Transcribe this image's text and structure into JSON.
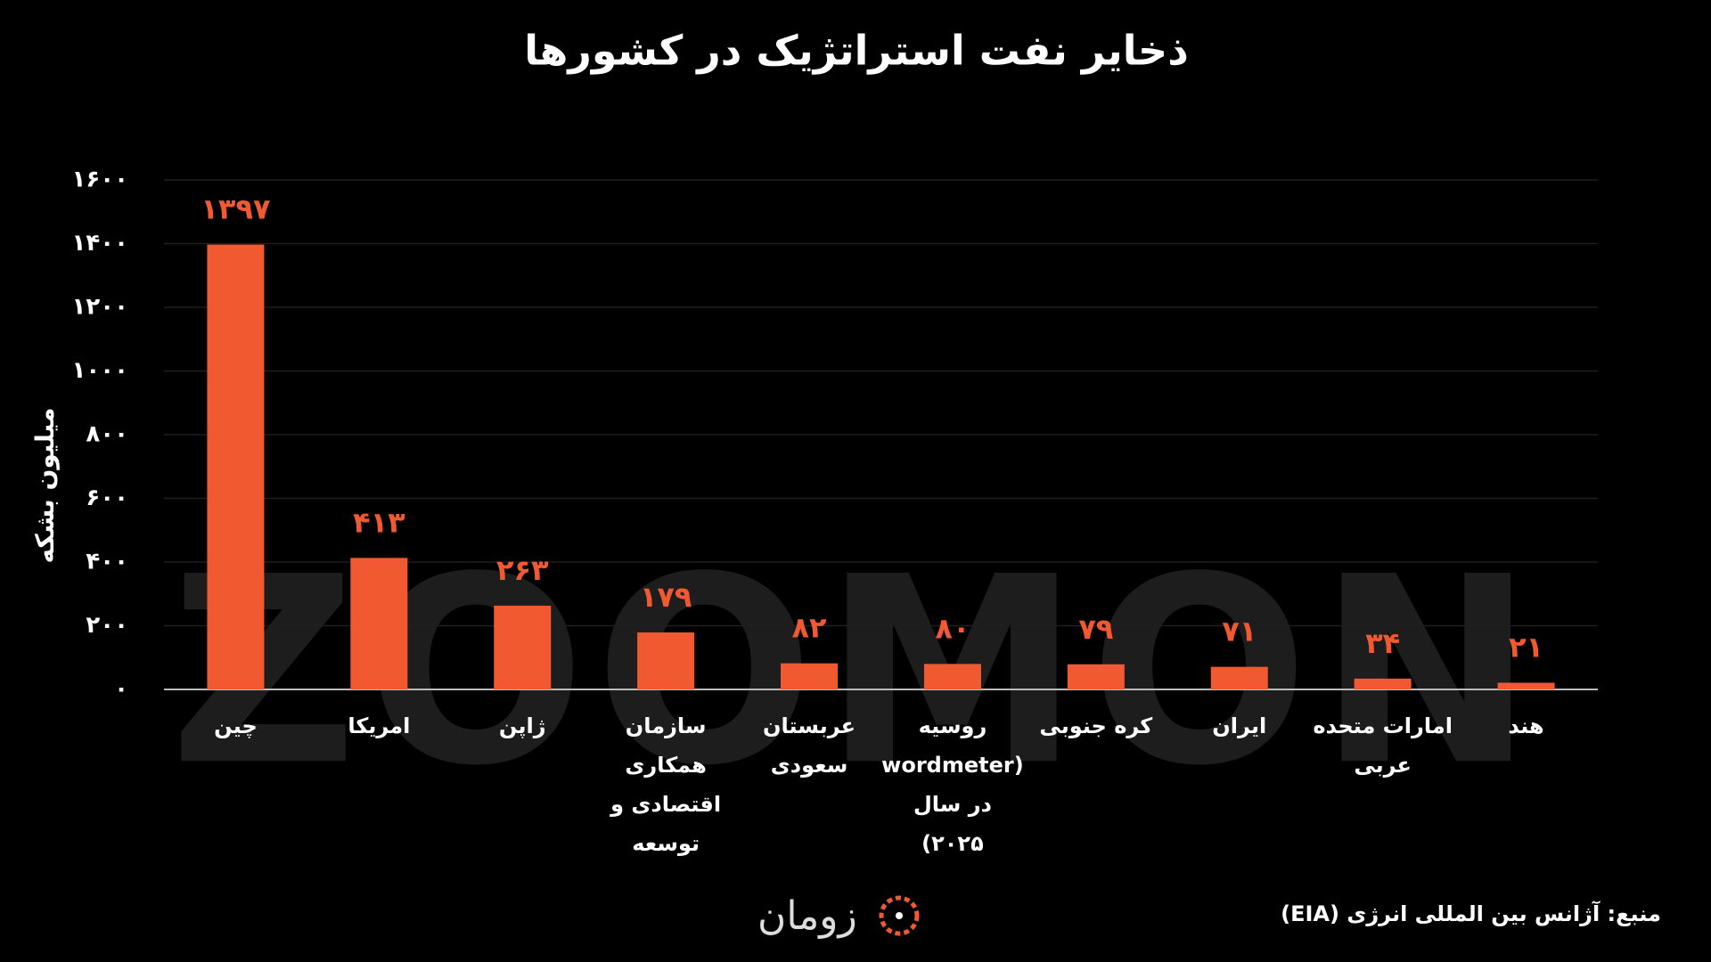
{
  "chart_data": {
    "type": "bar",
    "title": "ذخایر نفت استراتژیک در کشورها",
    "y_label": "میلیون بشکه",
    "watermark": "ZOOMON",
    "source": "منبع: آژانس بین المللی انرژی (EIA)",
    "logo": "زومان",
    "categories": [
      "چین",
      "امریکا",
      "ژاپن",
      "سازمان همکاری اقتصادی و توسعه",
      "عربستان سعودی",
      "روسیه (wordmeter در سال ۲۰۲۵)",
      "کره جنوبی",
      "ایران",
      "امارات متحده عربی",
      "هند"
    ],
    "values": [
      1397,
      413,
      263,
      179,
      82,
      80,
      79,
      71,
      34,
      21
    ],
    "value_labels": [
      "۱۳۹۷",
      "۴۱۳",
      "۲۶۳",
      "۱۷۹",
      "۸۲",
      "۸۰",
      "۷۹",
      "۷۱",
      "۳۴",
      "۲۱"
    ],
    "color": "#f15a31",
    "ylim": [
      0,
      1600
    ],
    "yticks": [
      {
        "value": 0,
        "label": "۰"
      },
      {
        "value": 200,
        "label": "۲۰۰"
      },
      {
        "value": 400,
        "label": "۴۰۰"
      },
      {
        "value": 600,
        "label": "۶۰۰"
      },
      {
        "value": 800,
        "label": "۸۰۰"
      },
      {
        "value": 1000,
        "label": "۱۰۰۰"
      },
      {
        "value": 1200,
        "label": "۱۲۰۰"
      },
      {
        "value": 1400,
        "label": "۱۴۰۰"
      },
      {
        "value": 1600,
        "label": "۱۶۰۰"
      }
    ],
    "grid": true
  }
}
